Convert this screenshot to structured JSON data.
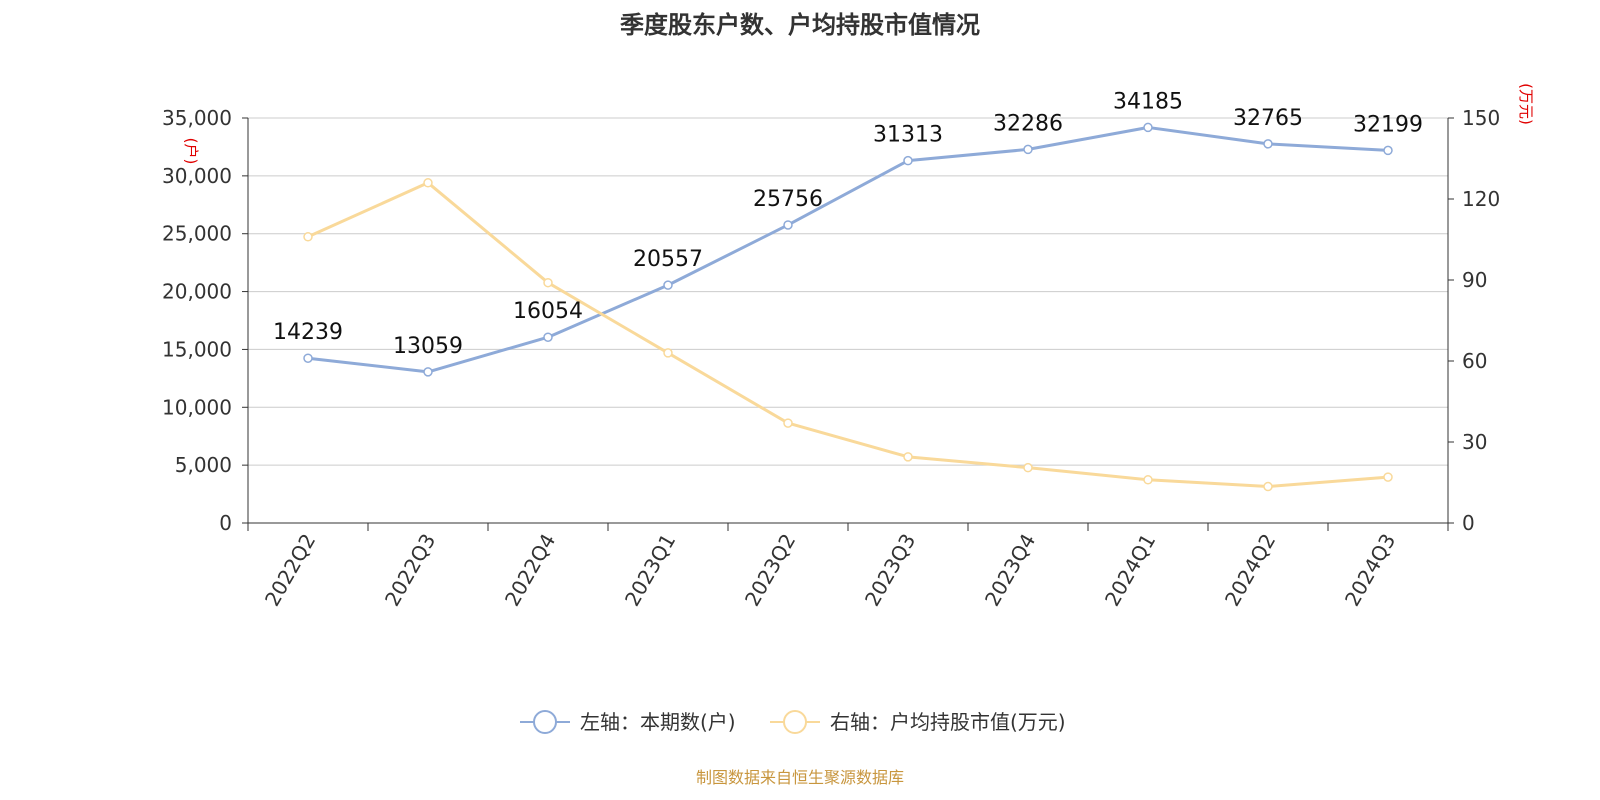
{
  "chart_data": {
    "type": "line",
    "title": "季度股东户数、户均持股市值情况",
    "categories": [
      "2022Q2",
      "2022Q3",
      "2022Q4",
      "2023Q1",
      "2023Q2",
      "2023Q3",
      "2023Q4",
      "2024Q1",
      "2024Q2",
      "2024Q3"
    ],
    "series": [
      {
        "name": "左轴：本期数(户)",
        "axis": "left",
        "color": "#8eaad8",
        "values": [
          14239,
          13059,
          16054,
          20557,
          25756,
          31313,
          32286,
          34185,
          32765,
          32199
        ],
        "show_labels": true
      },
      {
        "name": "右轴：户均持股市值(万元)",
        "axis": "right",
        "color": "#f9d99a",
        "values": [
          106,
          126,
          89,
          63,
          37,
          24.5,
          20.5,
          16,
          13.5,
          17
        ],
        "show_labels": false
      }
    ],
    "y_left": {
      "label": "(户)",
      "ylim": [
        0,
        35000
      ],
      "ticks": [
        0,
        5000,
        10000,
        15000,
        20000,
        25000,
        30000,
        35000
      ],
      "tick_labels": [
        "0",
        "5,000",
        "10,000",
        "15,000",
        "20,000",
        "25,000",
        "30,000",
        "35,000"
      ]
    },
    "y_right": {
      "label": "(万元)",
      "ylim": [
        0,
        150
      ],
      "ticks": [
        0,
        30,
        60,
        90,
        120,
        150
      ],
      "tick_labels": [
        "0",
        "30",
        "60",
        "90",
        "120",
        "150"
      ]
    },
    "grid": true,
    "legend_position": "bottom",
    "source": "制图数据来自恒生聚源数据库"
  }
}
